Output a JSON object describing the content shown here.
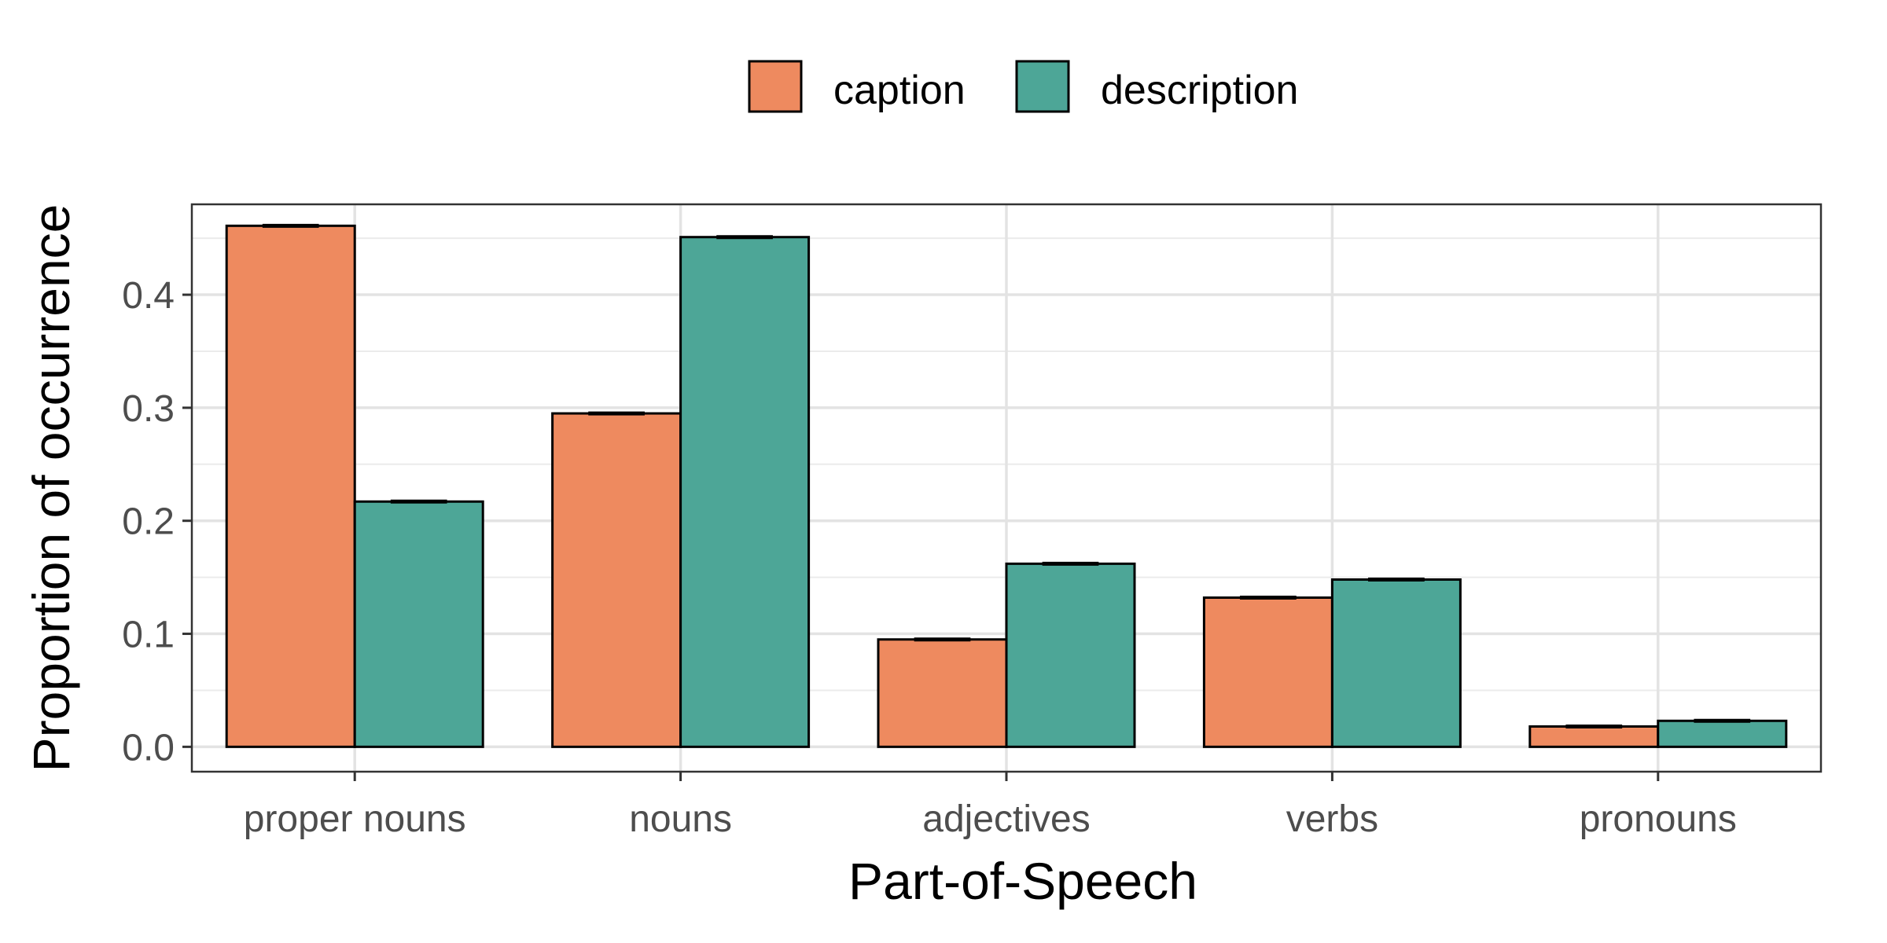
{
  "chart_data": {
    "type": "bar",
    "title": "",
    "xlabel": "Part-of-Speech",
    "ylabel": "Proportion of occurrence",
    "categories": [
      "proper nouns",
      "nouns",
      "adjectives",
      "verbs",
      "pronouns"
    ],
    "series": [
      {
        "name": "caption",
        "color": "#ee8a5f",
        "values": [
          0.461,
          0.295,
          0.095,
          0.132,
          0.018
        ]
      },
      {
        "name": "description",
        "color": "#4da697",
        "values": [
          0.217,
          0.451,
          0.162,
          0.148,
          0.023
        ]
      }
    ],
    "ylim": [
      -0.022,
      0.48
    ],
    "yticks": [
      0.0,
      0.1,
      0.2,
      0.3,
      0.4
    ],
    "ytick_labels": [
      "0.0",
      "0.1",
      "0.2",
      "0.3",
      "0.4"
    ],
    "grid": true,
    "error_bars": true,
    "legend_position": "top"
  }
}
